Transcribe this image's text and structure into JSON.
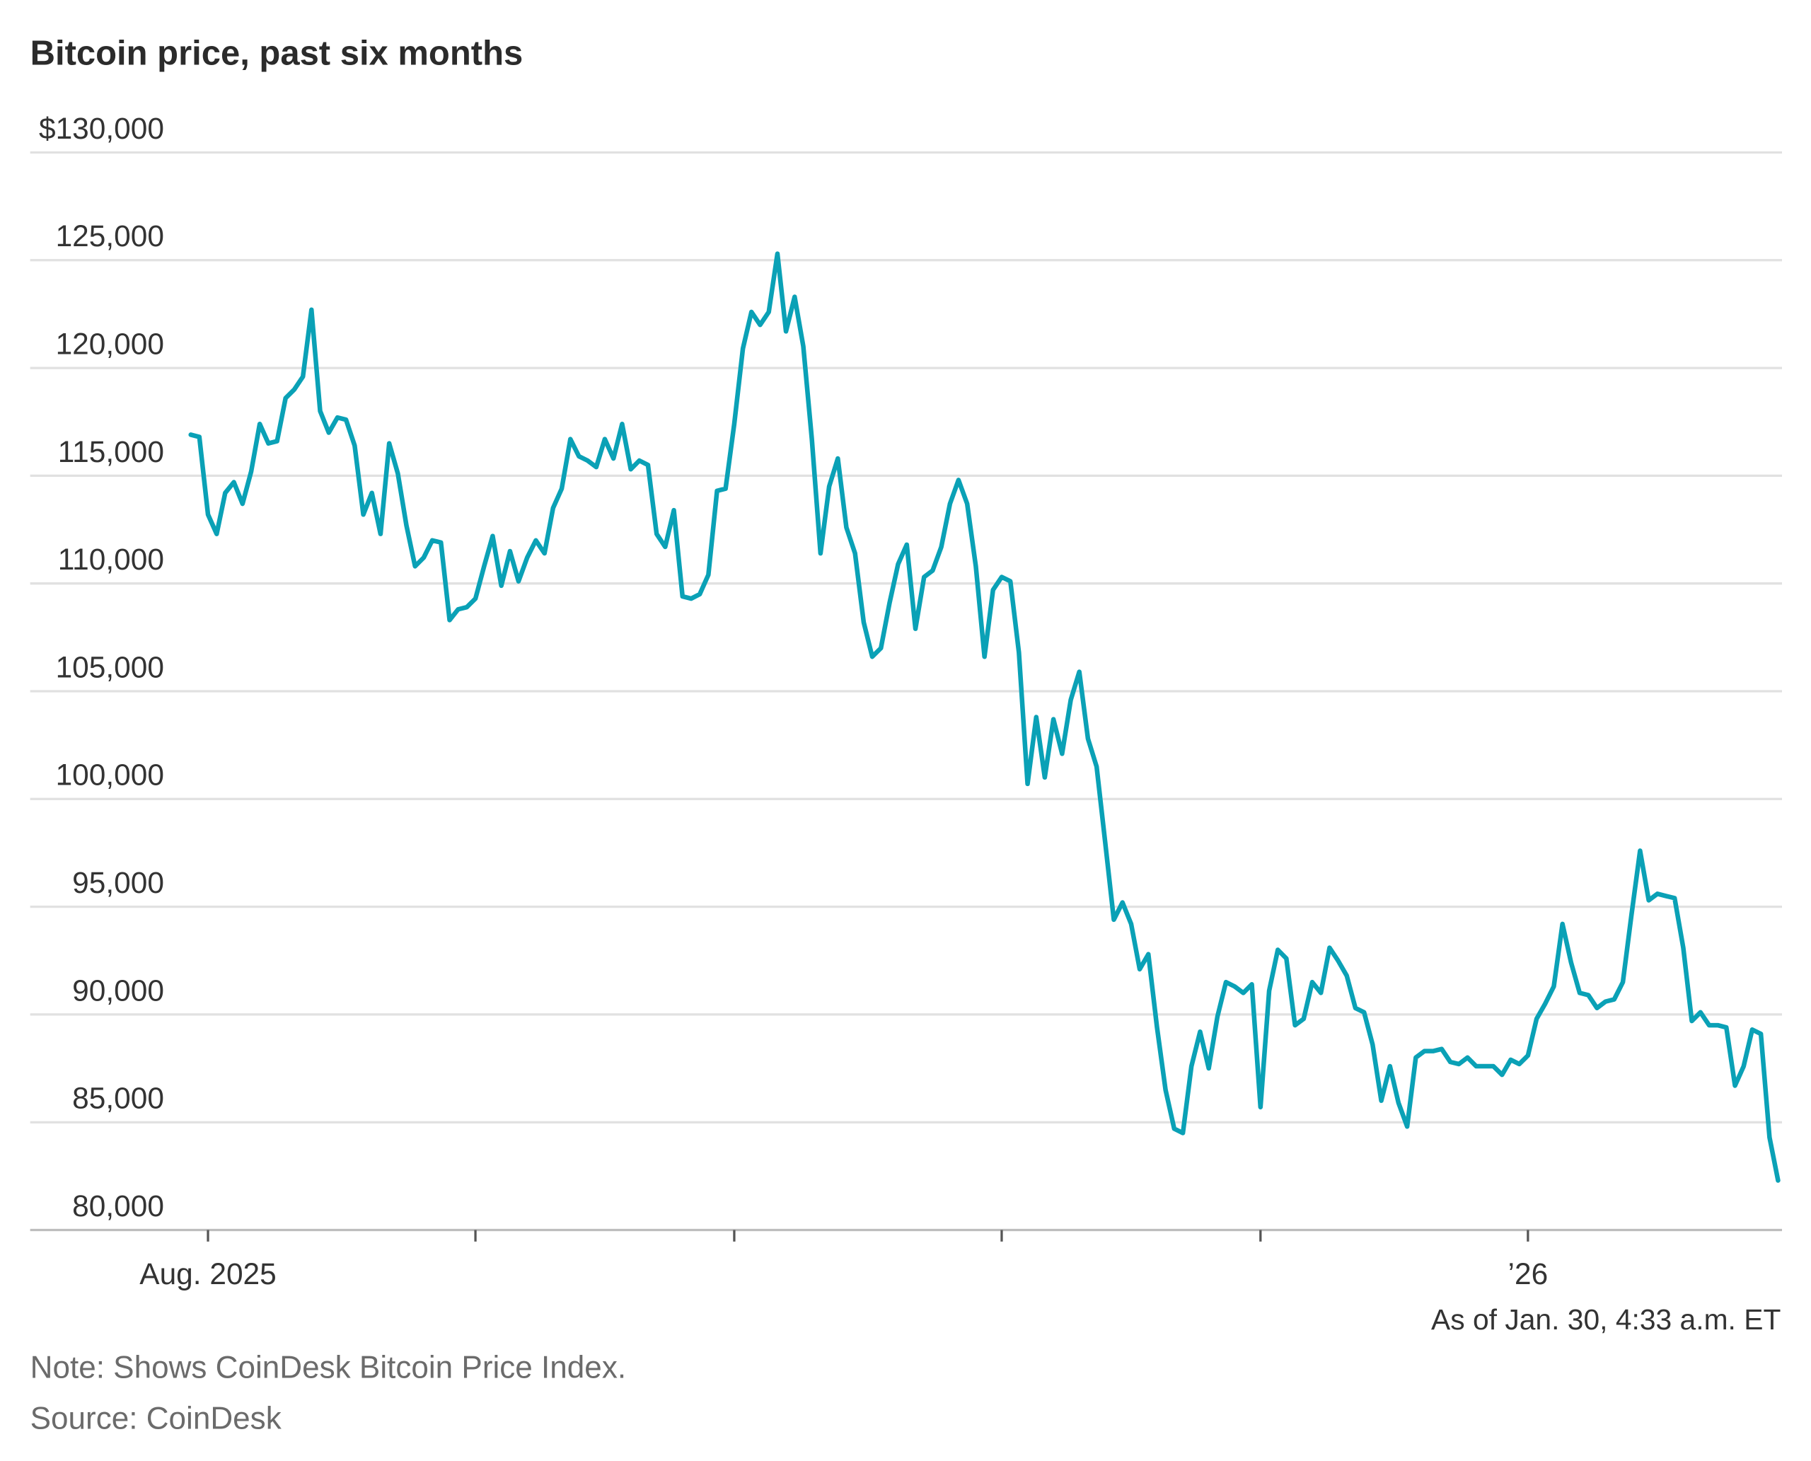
{
  "chart_data": {
    "type": "line",
    "title": "Bitcoin price, past six months",
    "xlabel": "",
    "ylabel": "",
    "y_unit_prefix": "$",
    "ylim": [
      80000,
      130000
    ],
    "yticks": [
      80000,
      85000,
      90000,
      95000,
      100000,
      105000,
      110000,
      115000,
      120000,
      125000,
      130000
    ],
    "ytick_labels": [
      "80,000",
      "85,000",
      "90,000",
      "95,000",
      "100,000",
      "105,000",
      "110,000",
      "115,000",
      "120,000",
      "125,000",
      "$130,000"
    ],
    "xticks": [
      "2025-08-01",
      "2025-09-01",
      "2025-10-01",
      "2025-11-01",
      "2025-12-01",
      "2026-01-01"
    ],
    "xtick_labels": [
      "Aug. 2025",
      "",
      "",
      "",
      "",
      "’26"
    ],
    "grid": "horizontal",
    "line_color": "#0aa1b6",
    "grid_color": "#e1e1e1",
    "x": [
      "2025-07-30",
      "2025-07-31",
      "2025-08-01",
      "2025-08-02",
      "2025-08-03",
      "2025-08-04",
      "2025-08-05",
      "2025-08-06",
      "2025-08-07",
      "2025-08-08",
      "2025-08-09",
      "2025-08-10",
      "2025-08-11",
      "2025-08-12",
      "2025-08-13",
      "2025-08-14",
      "2025-08-15",
      "2025-08-16",
      "2025-08-17",
      "2025-08-18",
      "2025-08-19",
      "2025-08-20",
      "2025-08-21",
      "2025-08-22",
      "2025-08-23",
      "2025-08-24",
      "2025-08-25",
      "2025-08-26",
      "2025-08-27",
      "2025-08-28",
      "2025-08-29",
      "2025-08-30",
      "2025-08-31",
      "2025-09-01",
      "2025-09-02",
      "2025-09-03",
      "2025-09-04",
      "2025-09-05",
      "2025-09-06",
      "2025-09-07",
      "2025-09-08",
      "2025-09-09",
      "2025-09-10",
      "2025-09-11",
      "2025-09-12",
      "2025-09-13",
      "2025-09-14",
      "2025-09-15",
      "2025-09-16",
      "2025-09-17",
      "2025-09-18",
      "2025-09-19",
      "2025-09-20",
      "2025-09-21",
      "2025-09-22",
      "2025-09-23",
      "2025-09-24",
      "2025-09-25",
      "2025-09-26",
      "2025-09-27",
      "2025-09-28",
      "2025-09-29",
      "2025-09-30",
      "2025-10-01",
      "2025-10-02",
      "2025-10-03",
      "2025-10-04",
      "2025-10-05",
      "2025-10-06",
      "2025-10-07",
      "2025-10-08",
      "2025-10-09",
      "2025-10-10",
      "2025-10-11",
      "2025-10-12",
      "2025-10-13",
      "2025-10-14",
      "2025-10-15",
      "2025-10-16",
      "2025-10-17",
      "2025-10-18",
      "2025-10-19",
      "2025-10-20",
      "2025-10-21",
      "2025-10-22",
      "2025-10-23",
      "2025-10-24",
      "2025-10-25",
      "2025-10-26",
      "2025-10-27",
      "2025-10-28",
      "2025-10-29",
      "2025-10-30",
      "2025-10-31",
      "2025-11-01",
      "2025-11-02",
      "2025-11-03",
      "2025-11-04",
      "2025-11-05",
      "2025-11-06",
      "2025-11-07",
      "2025-11-08",
      "2025-11-09",
      "2025-11-10",
      "2025-11-11",
      "2025-11-12",
      "2025-11-13",
      "2025-11-14",
      "2025-11-15",
      "2025-11-16",
      "2025-11-17",
      "2025-11-18",
      "2025-11-19",
      "2025-11-20",
      "2025-11-21",
      "2025-11-22",
      "2025-11-23",
      "2025-11-24",
      "2025-11-25",
      "2025-11-26",
      "2025-11-27",
      "2025-11-28",
      "2025-11-29",
      "2025-11-30",
      "2025-12-01",
      "2025-12-02",
      "2025-12-03",
      "2025-12-04",
      "2025-12-05",
      "2025-12-06",
      "2025-12-07",
      "2025-12-08",
      "2025-12-09",
      "2025-12-10",
      "2025-12-11",
      "2025-12-12",
      "2025-12-13",
      "2025-12-14",
      "2025-12-15",
      "2025-12-16",
      "2025-12-17",
      "2025-12-18",
      "2025-12-19",
      "2025-12-20",
      "2025-12-21",
      "2025-12-22",
      "2025-12-23",
      "2025-12-24",
      "2025-12-25",
      "2025-12-26",
      "2025-12-27",
      "2025-12-28",
      "2025-12-29",
      "2025-12-30",
      "2025-12-31",
      "2026-01-01",
      "2026-01-02",
      "2026-01-03",
      "2026-01-04",
      "2026-01-05",
      "2026-01-06",
      "2026-01-07",
      "2026-01-08",
      "2026-01-09",
      "2026-01-10",
      "2026-01-11",
      "2026-01-12",
      "2026-01-13",
      "2026-01-14",
      "2026-01-15",
      "2026-01-16",
      "2026-01-17",
      "2026-01-18",
      "2026-01-19",
      "2026-01-20",
      "2026-01-21",
      "2026-01-22",
      "2026-01-23",
      "2026-01-24",
      "2026-01-25",
      "2026-01-26",
      "2026-01-27",
      "2026-01-28",
      "2026-01-29",
      "2026-01-30"
    ],
    "values": [
      116900,
      116800,
      113200,
      112300,
      114200,
      114700,
      113700,
      115200,
      117400,
      116500,
      116600,
      118600,
      119000,
      119600,
      122700,
      118000,
      117000,
      117700,
      117600,
      116400,
      113200,
      114200,
      112300,
      116500,
      115100,
      112700,
      110800,
      111200,
      112000,
      111900,
      108300,
      108800,
      108900,
      109300,
      110800,
      112200,
      109900,
      111500,
      110100,
      111200,
      112000,
      111400,
      113500,
      114400,
      116700,
      115900,
      115700,
      115400,
      116700,
      115800,
      117400,
      115300,
      115700,
      115500,
      112300,
      111700,
      113400,
      109400,
      109300,
      109500,
      110400,
      114300,
      114400,
      117400,
      120900,
      122600,
      122000,
      122600,
      125300,
      121700,
      123300,
      121000,
      116700,
      111400,
      114500,
      115800,
      112600,
      111400,
      108200,
      106600,
      107000,
      109100,
      110900,
      111800,
      107900,
      110300,
      110600,
      111700,
      113700,
      114800,
      113700,
      110800,
      106600,
      109700,
      110300,
      110100,
      106800,
      100700,
      103800,
      101000,
      103700,
      102100,
      104600,
      105900,
      102800,
      101500,
      98000,
      94400,
      95200,
      94200,
      92100,
      92800,
      89400,
      86500,
      84700,
      84500,
      87600,
      89200,
      87500,
      89900,
      91500,
      91300,
      91000,
      91400,
      85700,
      91100,
      93000,
      92600,
      89500,
      89800,
      91500,
      91000,
      93100,
      92500,
      91800,
      90300,
      90100,
      88600,
      86000,
      87600,
      85900,
      84800,
      88000,
      88300,
      88300,
      88400,
      87800,
      87700,
      88000,
      87600,
      87600,
      87600,
      87200,
      87900,
      87700,
      88100,
      89800,
      90500,
      91300,
      94200,
      92400,
      91000,
      90900,
      90300,
      90600,
      90700,
      91500,
      94600,
      97600,
      95300,
      95600,
      95500,
      95400,
      93100,
      89700,
      90100,
      89500,
      89500,
      89400,
      86700,
      87600,
      89300,
      89100,
      84300,
      82300
    ]
  },
  "footer": {
    "as_of": "As of Jan. 30, 4:33 a.m. ET",
    "note": "Note: Shows CoinDesk Bitcoin Price Index.",
    "source": "Source: CoinDesk"
  }
}
